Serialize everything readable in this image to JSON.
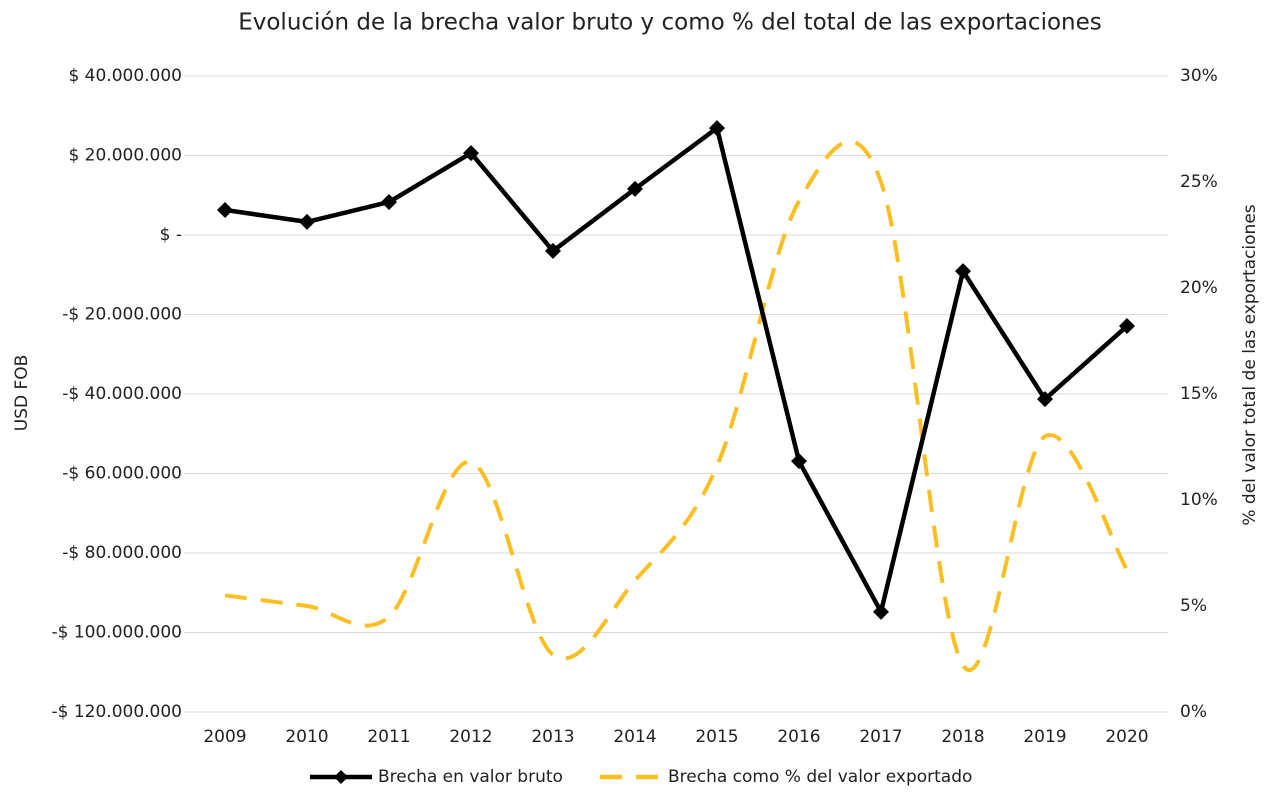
{
  "chart_data": {
    "type": "line",
    "title": "Evolución de la brecha valor bruto y como % del total de las exportaciones",
    "ylabel": "USD FOB",
    "y2label": "% del valor total de las exportaciones",
    "categories": [
      "2009",
      "2010",
      "2011",
      "2012",
      "2013",
      "2014",
      "2015",
      "2016",
      "2017",
      "2018",
      "2019",
      "2020"
    ],
    "series": [
      {
        "name": "Brecha en valor bruto",
        "color": "#000000",
        "axis": "y",
        "marker": "diamond",
        "values": [
          6300000,
          3300000,
          8300000,
          20600000,
          -4000000,
          11600000,
          26900000,
          -56900000,
          -94800000,
          -9100000,
          -41300000,
          -22900000
        ]
      },
      {
        "name": "Brecha como % del valor exportado",
        "color": "#fbbf24",
        "axis": "y2",
        "dashed": true,
        "smooth": true,
        "values": [
          5.5,
          5.0,
          4.5,
          11.8,
          2.7,
          6.2,
          11.6,
          24.1,
          25.0,
          2.2,
          13.0,
          6.7
        ]
      }
    ],
    "ylim": [
      -120000000,
      40000000
    ],
    "yticks": [
      {
        "value": -120000000,
        "label": "-$ 120.000.000"
      },
      {
        "value": -100000000,
        "label": "-$ 100.000.000"
      },
      {
        "value": -80000000,
        "label": "-$ 80.000.000"
      },
      {
        "value": -60000000,
        "label": "-$ 60.000.000"
      },
      {
        "value": -40000000,
        "label": "-$ 40.000.000"
      },
      {
        "value": -20000000,
        "label": "-$ 20.000.000"
      },
      {
        "value": 0,
        "label": "$ -"
      },
      {
        "value": 20000000,
        "label": "$ 20.000.000"
      },
      {
        "value": 40000000,
        "label": "$ 40.000.000"
      }
    ],
    "y2lim": [
      0,
      30
    ],
    "y2ticks": [
      {
        "value": 0,
        "label": "0%"
      },
      {
        "value": 5,
        "label": "5%"
      },
      {
        "value": 10,
        "label": "10%"
      },
      {
        "value": 15,
        "label": "15%"
      },
      {
        "value": 20,
        "label": "20%"
      },
      {
        "value": 25,
        "label": "25%"
      },
      {
        "value": 30,
        "label": "30%"
      }
    ],
    "grid": true,
    "legend": "bottom"
  }
}
